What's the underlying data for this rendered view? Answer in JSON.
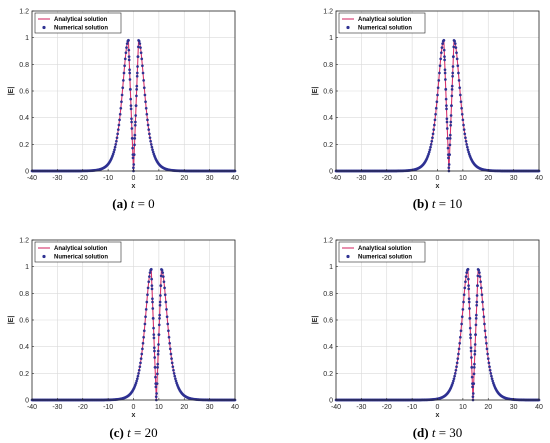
{
  "colors": {
    "analytical_line": "#d6336c",
    "numerical_marker": "#2e3192",
    "grid": "#d9d9d9",
    "axis": "#262626"
  },
  "chart_data": [
    {
      "type": "line",
      "caption_tag": "(a)",
      "caption_t": "t",
      "caption_value": " = 0",
      "xlabel": "x",
      "ylabel": "|E|",
      "xlim": [
        -40,
        40
      ],
      "ylim": [
        0,
        1.2
      ],
      "xticks": [
        "-40",
        "-30",
        "-20",
        "-10",
        "0",
        "10",
        "20",
        "30",
        "40"
      ],
      "yticks": [
        "0",
        "0.2",
        "0.4",
        "0.6",
        "0.8",
        "1",
        "1.2"
      ],
      "grid": true,
      "legend_position": "top-left",
      "pulse_centers": [
        -2,
        2
      ],
      "peak_value": 0.98,
      "dip_value": 0.0,
      "series": [
        {
          "name": "Analytical solution",
          "style": "line"
        },
        {
          "name": "Numerical solution",
          "style": "markers"
        }
      ]
    },
    {
      "type": "line",
      "caption_tag": "(b)",
      "caption_t": "t",
      "caption_value": " = 10",
      "xlabel": "x",
      "ylabel": "|E|",
      "xlim": [
        -40,
        40
      ],
      "ylim": [
        0,
        1.2
      ],
      "xticks": [
        "-40",
        "-30",
        "-20",
        "-10",
        "0",
        "10",
        "20",
        "30",
        "40"
      ],
      "yticks": [
        "0",
        "0.2",
        "0.4",
        "0.6",
        "0.8",
        "1",
        "1.2"
      ],
      "grid": true,
      "legend_position": "top-left",
      "pulse_centers": [
        2.5,
        6.5
      ],
      "peak_value": 0.98,
      "dip_value": 0.0,
      "series": [
        {
          "name": "Analytical solution",
          "style": "line"
        },
        {
          "name": "Numerical solution",
          "style": "markers"
        }
      ]
    },
    {
      "type": "line",
      "caption_tag": "(c)",
      "caption_t": "t",
      "caption_value": " = 20",
      "xlabel": "x",
      "ylabel": "|E|",
      "xlim": [
        -40,
        40
      ],
      "ylim": [
        0,
        1.2
      ],
      "xticks": [
        "-40",
        "-30",
        "-20",
        "-10",
        "0",
        "10",
        "20",
        "30",
        "40"
      ],
      "yticks": [
        "0",
        "0.2",
        "0.4",
        "0.6",
        "0.8",
        "1",
        "1.2"
      ],
      "grid": true,
      "legend_position": "top-left",
      "pulse_centers": [
        7,
        11
      ],
      "peak_value": 0.98,
      "dip_value": 0.0,
      "series": [
        {
          "name": "Analytical solution",
          "style": "line"
        },
        {
          "name": "Numerical solution",
          "style": "markers"
        }
      ]
    },
    {
      "type": "line",
      "caption_tag": "(d)",
      "caption_t": "t",
      "caption_value": " = 30",
      "xlabel": "x",
      "ylabel": "|E|",
      "xlim": [
        -40,
        40
      ],
      "ylim": [
        0,
        1.2
      ],
      "xticks": [
        "-40",
        "-30",
        "-20",
        "-10",
        "0",
        "10",
        "20",
        "30",
        "40"
      ],
      "yticks": [
        "0",
        "0.2",
        "0.4",
        "0.6",
        "0.8",
        "1",
        "1.2"
      ],
      "grid": true,
      "legend_position": "top-left",
      "pulse_centers": [
        12,
        16
      ],
      "peak_value": 0.98,
      "dip_value": 0.0,
      "series": [
        {
          "name": "Analytical solution",
          "style": "line"
        },
        {
          "name": "Numerical solution",
          "style": "markers"
        }
      ]
    }
  ]
}
